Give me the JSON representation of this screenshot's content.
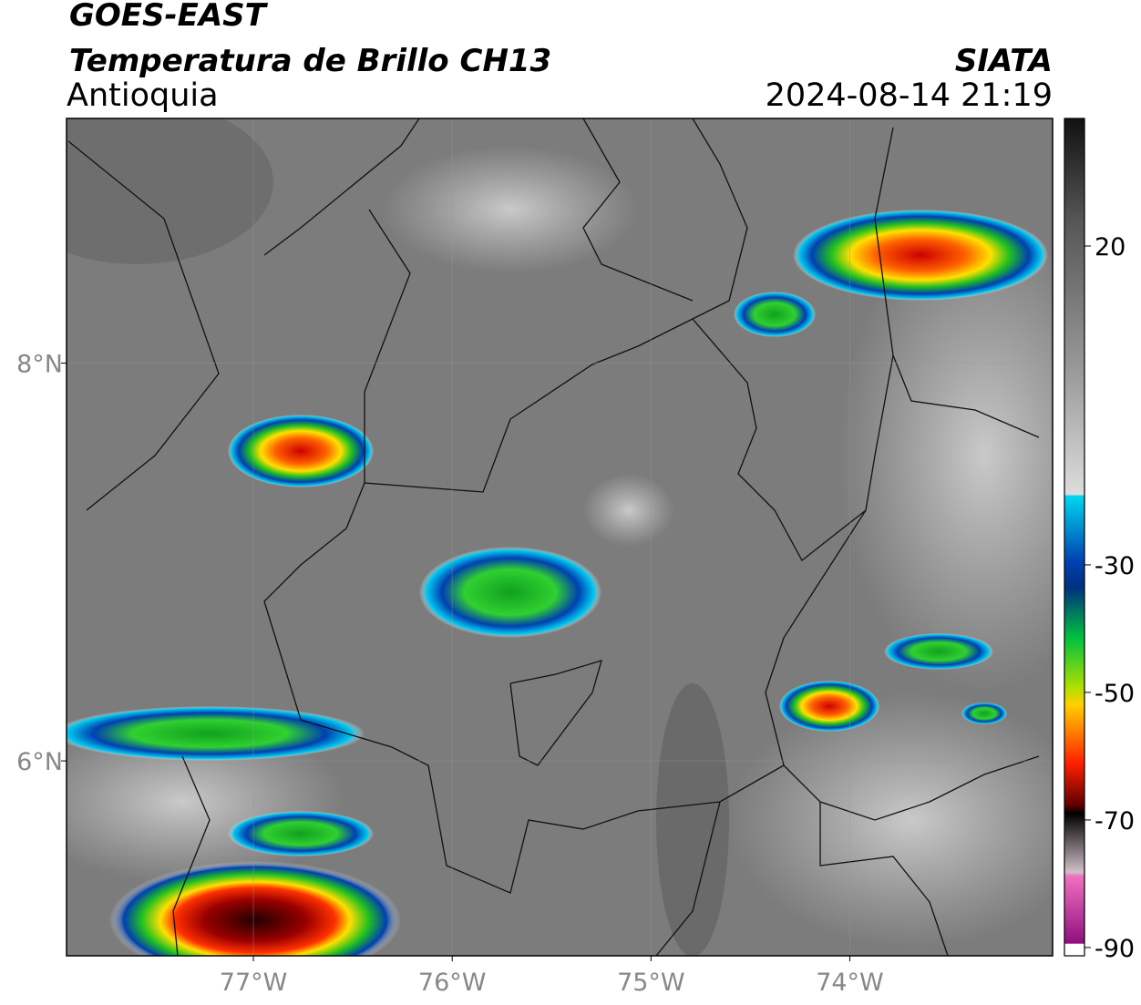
{
  "header": {
    "satellite": "GOES-EAST",
    "product": "Temperatura de Brillo CH13",
    "region": "Antioquia",
    "source": "SIATA",
    "datetime": "2024-08-14 21:19"
  },
  "map": {
    "xlim": [
      -77.94,
      -72.98
    ],
    "ylim": [
      5.02,
      9.23
    ],
    "xticks": [
      {
        "value": -77,
        "label": "77°W"
      },
      {
        "value": -76,
        "label": "76°W"
      },
      {
        "value": -75,
        "label": "75°W"
      },
      {
        "value": -74,
        "label": "74°W"
      }
    ],
    "yticks": [
      {
        "value": 8,
        "label": "8°N"
      },
      {
        "value": 6,
        "label": "6°N"
      }
    ],
    "grid": true
  },
  "colorbar": {
    "lim": [
      -91.3,
      40
    ],
    "ticks": [
      20,
      -30,
      -50,
      -70,
      -90
    ]
  }
}
